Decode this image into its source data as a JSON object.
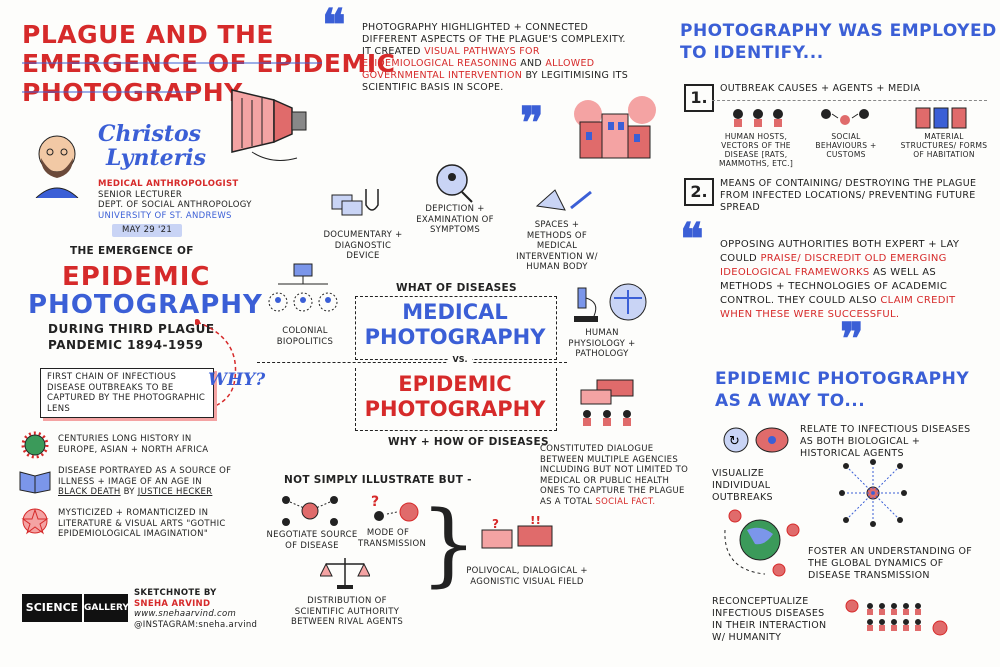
{
  "header": {
    "title_line1": "PLAGUE AND THE",
    "title_line2": "EMERGENCE OF EPIDEMIC",
    "title_line3": "PHOTOGRAPHY"
  },
  "speaker": {
    "name_line1": "Christos",
    "name_line2": "Lynteris",
    "role": "MEDICAL ANTHROPOLOGIST",
    "position": "SENIOR LECTURER",
    "dept": "DEPT. OF SOCIAL ANTHROPOLOGY",
    "university": "UNIVERSITY OF ST. ANDREWS",
    "date": "MAY 29 '21"
  },
  "left": {
    "emergence_label": "THE EMERGENCE OF",
    "big1": "EPIDEMIC",
    "big2": "PHOTOGRAPHY",
    "during1": "DURING THIRD PLAGUE",
    "during2": "PANDEMIC 1894-1959",
    "first_chain": "FIRST CHAIN OF INFECTIOUS DISEASE OUTBREAKS TO BE CAPTURED BY THE PHOTOGRAPHIC LENS",
    "why": "WHY?",
    "item1": "CENTURIES LONG HISTORY IN EUROPE, ASIAN + NORTH AFRICA",
    "item2a": "DISEASE PORTRAYED AS A SOURCE OF ILLNESS + IMAGE OF AN AGE IN",
    "item2b": "BLACK DEATH",
    "item2c": "BY",
    "item2d": "JUSTICE HECKER",
    "item3": "MYSTICIZED + ROMANTICIZED IN LITERATURE & VISUAL ARTS \"GOTHIC EPIDEMIOLOGICAL IMAGINATION\""
  },
  "footer": {
    "logo1": "SCIENCE",
    "logo2": "GALLERY",
    "sketch_by": "SKETCHNOTE BY",
    "artist": "SNEHA ARVIND",
    "web": "www.snehaarvind.com",
    "insta": "@INSTAGRAM:sneha.arvind"
  },
  "quote1": {
    "text1": "PHOTOGRAPHY HIGHLIGHTED + CONNECTED DIFFERENT ASPECTS OF THE PLAGUE'S COMPLEXITY. IT CREATED",
    "hl1": "VISUAL PATHWAYS FOR EPIDEMIOLOGICAL REASONING",
    "text2": "AND",
    "hl2": "ALLOWED GOVERNMENTAL INTERVENTION",
    "text3": "BY LEGITIMISING ITS SCIENTIFIC BASIS IN SCOPE."
  },
  "center": {
    "documentary": "DOCUMENTARY + DIAGNOSTIC DEVICE",
    "depiction": "DEPICTION + EXAMINATION OF SYMPTOMS",
    "spaces": "SPACES + METHODS OF MEDICAL INTERVENTION W/ HUMAN BODY",
    "colonial": "COLONIAL BIOPOLITICS",
    "what": "WHAT OF DISEASES",
    "medical1": "MEDICAL",
    "medical2": "PHOTOGRAPHY",
    "vs": "VS.",
    "epidemic1": "EPIDEMIC",
    "epidemic2": "PHOTOGRAPHY",
    "why_how": "WHY + HOW OF DISEASES",
    "human": "HUMAN PHYSIOLOGY + PATHOLOGY",
    "dialogue_a": "CONSTITUTED DIALOGUE BETWEEN MULTIPLE AGENCIES INCLUDING BUT NOT LIMITED TO MEDICAL OR PUBLIC HEALTH ONES TO CAPTURE THE PLAGUE AS A TOTAL",
    "dialogue_b": "SOCIAL FACT.",
    "not_simply": "NOT SIMPLY ILLUSTRATE BUT -",
    "negotiate": "NEGOTIATE SOURCE OF DISEASE",
    "mode": "MODE OF TRANSMISSION",
    "distribution": "DISTRIBUTION OF SCIENTIFIC AUTHORITY BETWEEN RIVAL AGENTS",
    "polivocal": "POLIVOCAL, DIALOGICAL + AGONISTIC VISUAL FIELD"
  },
  "right": {
    "head1": "PHOTOGRAPHY WAS EMPLOYED",
    "head2": "TO IDENTIFY...",
    "num1": "1.",
    "outbreak": "OUTBREAK CAUSES + AGENTS + MEDIA",
    "hosts": "HUMAN HOSTS, VECTORS OF THE DISEASE [RATS, MAMMOTHS, ETC.]",
    "social": "SOCIAL BEHAVIOURS + CUSTOMS",
    "material": "MATERIAL STRUCTURES/ FORMS OF HABITATION",
    "num2": "2.",
    "means": "MEANS OF CONTAINING/ DESTROYING THE PLAGUE FROM INFECTED LOCATIONS/ PREVENTING FUTURE SPREAD",
    "opp1": "OPPOSING AUTHORITIES BOTH EXPERT + LAY COULD",
    "opp_hl1": "PRAISE/ DISCREDIT OLD EMERGING IDEOLOGICAL FRAMEWORKS",
    "opp2": "AS WELL AS METHODS + TECHNOLOGIES OF ACADEMIC CONTROL. THEY COULD ALSO",
    "opp_hl2": "CLAIM CREDIT WHEN THESE WERE SUCCESSFUL.",
    "way1": "EPIDEMIC PHOTOGRAPHY",
    "way2": "AS A WAY TO...",
    "relate": "RELATE TO INFECTIOUS DISEASES AS BOTH BIOLOGICAL + HISTORICAL AGENTS",
    "visualize": "VISUALIZE INDIVIDUAL OUTBREAKS",
    "foster": "FOSTER AN UNDERSTANDING OF THE GLOBAL DYNAMICS OF DISEASE TRANSMISSION",
    "reconceptualize": "RECONCEPTUALIZE INFECTIOUS DISEASES IN THEIR INTERACTION W/ HUMANITY"
  }
}
